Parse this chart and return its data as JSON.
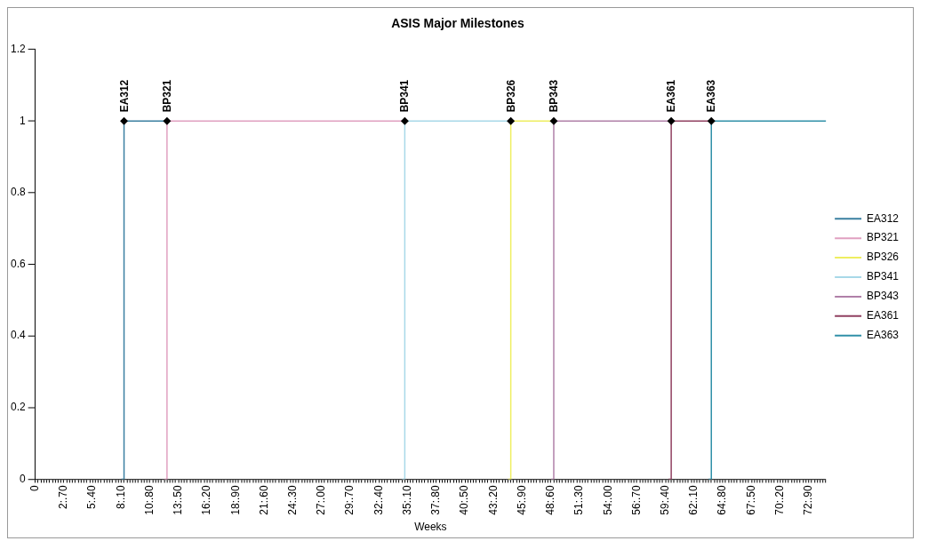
{
  "chart_data": {
    "type": "step",
    "title": "ASIS Major Milestones",
    "xlabel": "Weeks",
    "categories": [
      "0",
      null,
      null,
      null,
      null,
      null,
      null,
      null,
      null,
      null,
      "2:.70",
      null,
      null,
      null,
      null,
      null,
      null,
      null,
      null,
      null,
      "5:.40",
      null,
      null,
      null,
      null,
      null,
      null,
      null,
      null,
      null,
      "8:.10",
      null,
      null,
      null,
      null,
      null,
      null,
      null,
      null,
      null,
      "10:.80",
      null,
      null,
      null,
      null,
      null,
      null,
      null,
      null,
      null,
      "13:.50",
      null,
      null,
      null,
      null,
      null,
      null,
      null,
      null,
      null,
      "16:.20",
      null,
      null,
      null,
      null,
      null,
      null,
      null,
      null,
      null,
      "18:.90",
      null,
      null,
      null,
      null,
      null,
      null,
      null,
      null,
      null,
      "21:.60",
      null,
      null,
      null,
      null,
      null,
      null,
      null,
      null,
      null,
      "24:.30",
      null,
      null,
      null,
      null,
      null,
      null,
      null,
      null,
      null,
      "27:.00",
      null,
      null,
      null,
      null,
      null,
      null,
      null,
      null,
      null,
      "29:.70",
      null,
      null,
      null,
      null,
      null,
      null,
      null,
      null,
      null,
      "32:.40",
      null,
      null,
      null,
      null,
      null,
      null,
      null,
      null,
      null,
      "35:.10",
      null,
      null,
      null,
      null,
      null,
      null,
      null,
      null,
      null,
      "37:.80",
      null,
      null,
      null,
      null,
      null,
      null,
      null,
      null,
      null,
      "40:.50",
      null,
      null,
      null,
      null,
      null,
      null,
      null,
      null,
      null,
      "43:.20",
      null,
      null,
      null,
      null,
      null,
      null,
      null,
      null,
      null,
      "45:.90",
      null,
      null,
      null,
      null,
      null,
      null,
      null,
      null,
      null,
      "48:.60",
      null,
      null,
      null,
      null,
      null,
      null,
      null,
      null,
      null,
      "51:.30",
      null,
      null,
      null,
      null,
      null,
      null,
      null,
      null,
      null,
      "54:.00",
      null,
      null,
      null,
      null,
      null,
      null,
      null,
      null,
      null,
      "56:.70",
      null,
      null,
      null,
      null,
      null,
      null,
      null,
      null,
      null,
      "59:.40",
      null,
      null,
      null,
      null,
      null,
      null,
      null,
      null,
      null,
      "62:.10",
      null,
      null,
      null,
      null,
      null,
      null,
      null,
      null,
      null,
      "64:.80",
      null,
      null,
      null,
      null,
      null,
      null,
      null,
      null,
      null,
      "67:.50",
      null,
      null,
      null,
      null,
      null,
      null,
      null,
      null,
      null,
      "70:.20",
      null,
      null,
      null,
      null,
      null,
      null,
      null,
      null,
      null,
      "72:.90",
      null,
      null,
      null,
      null,
      null,
      null
    ],
    "ylim": [
      0,
      1.2
    ],
    "yticks": [
      0,
      0.2,
      0.4,
      0.6,
      0.8,
      1,
      1.2
    ],
    "grid": false,
    "legend": "right",
    "line_style": "solid",
    "series": [
      {
        "name": "EA312",
        "color": "#3a7fa0",
        "values": [
          null,
          null,
          null,
          null,
          null,
          null,
          null,
          null,
          null,
          null,
          null,
          null,
          null,
          null,
          null,
          null,
          null,
          null,
          null,
          null,
          null,
          null,
          null,
          null,
          null,
          null,
          null,
          null,
          null,
          null,
          0,
          1,
          1,
          1,
          1,
          1,
          1,
          1,
          1,
          1,
          1,
          1,
          1,
          1,
          1,
          1,
          1,
          null,
          null,
          null,
          null,
          null,
          null,
          null,
          null,
          null,
          null,
          null,
          null,
          null,
          null,
          null,
          null,
          null,
          null,
          null,
          null,
          null,
          null,
          null,
          null,
          null,
          null,
          null,
          null,
          null,
          null,
          null,
          null,
          null,
          null,
          null,
          null,
          null,
          null,
          null,
          null,
          null,
          null,
          null,
          null,
          null,
          null,
          null,
          null,
          null,
          null,
          null,
          null,
          null,
          null,
          null,
          null,
          null,
          null,
          null,
          null,
          null,
          null,
          null,
          null,
          null,
          null,
          null,
          null,
          null,
          null,
          null,
          null,
          null,
          null,
          null,
          null,
          null,
          null,
          null,
          null,
          null,
          null,
          null,
          null,
          null,
          null,
          null,
          null,
          null,
          null,
          null,
          null,
          null,
          null,
          null,
          null,
          null,
          null,
          null,
          null,
          null,
          null,
          null,
          null,
          null,
          null,
          null,
          null,
          null,
          null,
          null,
          null,
          null,
          null,
          null,
          null,
          null,
          null,
          null,
          null,
          null,
          null,
          null,
          null,
          null,
          null,
          null,
          null,
          null,
          null,
          null,
          null,
          null,
          null,
          null,
          null,
          null,
          null,
          null,
          null,
          null,
          null,
          null,
          null,
          null,
          null,
          null,
          null,
          null,
          null,
          null,
          null,
          null,
          null,
          null,
          null,
          null,
          null,
          null,
          null,
          null,
          null,
          null,
          null,
          null,
          null,
          null,
          null,
          null,
          null,
          null,
          null,
          null,
          null,
          null,
          null,
          null,
          null,
          null,
          null,
          null,
          null,
          null,
          null,
          null,
          null,
          null,
          null,
          null,
          null,
          null,
          null,
          null,
          null,
          null,
          null,
          null,
          null,
          null,
          null,
          null,
          null,
          null,
          null,
          null,
          null,
          null,
          null,
          null,
          null,
          null,
          null,
          null,
          null,
          null,
          null,
          null,
          null,
          null,
          null,
          null,
          null,
          null,
          null,
          null,
          null,
          null,
          null,
          null,
          null
        ]
      },
      {
        "name": "BP321",
        "color": "#e0a0c0",
        "values": [
          null,
          null,
          null,
          null,
          null,
          null,
          null,
          null,
          null,
          null,
          null,
          null,
          null,
          null,
          null,
          null,
          null,
          null,
          null,
          null,
          null,
          null,
          null,
          null,
          null,
          null,
          null,
          null,
          null,
          null,
          null,
          null,
          null,
          null,
          null,
          null,
          null,
          null,
          null,
          null,
          null,
          null,
          null,
          null,
          null,
          0,
          1,
          1,
          1,
          1,
          1,
          1,
          1,
          1,
          1,
          1,
          1,
          1,
          1,
          1,
          1,
          1,
          1,
          1,
          1,
          1,
          1,
          1,
          1,
          1,
          1,
          1,
          1,
          1,
          1,
          1,
          1,
          1,
          1,
          1,
          1,
          1,
          1,
          1,
          1,
          1,
          1,
          1,
          1,
          1,
          1,
          1,
          1,
          1,
          1,
          1,
          1,
          1,
          1,
          1,
          1,
          1,
          1,
          1,
          1,
          1,
          1,
          1,
          1,
          1,
          1,
          1,
          1,
          1,
          1,
          1,
          1,
          1,
          1,
          1,
          1,
          1,
          1,
          1,
          1,
          1,
          1,
          1,
          1,
          1,
          null,
          null,
          null,
          null,
          null,
          null,
          null,
          null,
          null,
          null,
          null,
          null,
          null,
          null,
          null,
          null,
          null,
          null,
          null,
          null,
          null,
          null,
          null,
          null,
          null,
          null,
          null,
          null,
          null,
          null,
          null,
          null,
          null,
          null,
          null,
          null,
          null,
          null,
          null,
          null,
          null,
          null,
          null,
          null,
          null,
          null,
          null,
          null,
          null,
          null,
          null,
          null,
          null,
          null,
          null,
          null,
          null,
          null,
          null,
          null,
          null,
          null,
          null,
          null,
          null,
          null,
          null,
          null,
          null,
          null,
          null,
          null,
          null,
          null,
          null,
          null,
          null,
          null,
          null,
          null,
          null,
          null,
          null,
          null,
          null,
          null,
          null,
          null,
          null,
          null,
          null,
          null,
          null,
          null,
          null,
          null,
          null,
          null,
          null,
          null,
          null,
          null,
          null,
          null,
          null,
          null,
          null,
          null,
          null,
          null,
          null,
          null,
          null,
          null,
          null,
          null,
          null,
          null,
          null,
          null,
          null,
          null,
          null,
          null,
          null,
          null,
          null,
          null,
          null,
          null,
          null,
          null,
          null,
          null,
          null,
          null,
          null,
          null,
          null,
          null,
          null,
          null,
          null,
          null,
          null,
          null,
          null
        ]
      },
      {
        "name": "BP326",
        "color": "#eeee60",
        "values": [
          null,
          null,
          null,
          null,
          null,
          null,
          null,
          null,
          null,
          null,
          null,
          null,
          null,
          null,
          null,
          null,
          null,
          null,
          null,
          null,
          null,
          null,
          null,
          null,
          null,
          null,
          null,
          null,
          null,
          null,
          null,
          null,
          null,
          null,
          null,
          null,
          null,
          null,
          null,
          null,
          null,
          null,
          null,
          null,
          null,
          null,
          null,
          null,
          null,
          null,
          null,
          null,
          null,
          null,
          null,
          null,
          null,
          null,
          null,
          null,
          null,
          null,
          null,
          null,
          null,
          null,
          null,
          null,
          null,
          null,
          null,
          null,
          null,
          null,
          null,
          null,
          null,
          null,
          null,
          null,
          null,
          null,
          null,
          null,
          null,
          null,
          null,
          null,
          null,
          null,
          null,
          null,
          null,
          null,
          null,
          null,
          null,
          null,
          null,
          null,
          null,
          null,
          null,
          null,
          null,
          null,
          null,
          null,
          null,
          null,
          null,
          null,
          null,
          null,
          null,
          null,
          null,
          null,
          null,
          null,
          null,
          null,
          null,
          null,
          null,
          null,
          null,
          null,
          null,
          null,
          null,
          null,
          null,
          null,
          null,
          null,
          null,
          null,
          null,
          null,
          null,
          null,
          null,
          null,
          null,
          null,
          null,
          null,
          null,
          null,
          null,
          null,
          null,
          null,
          null,
          null,
          null,
          null,
          null,
          null,
          null,
          null,
          null,
          null,
          null,
          0,
          1,
          1,
          1,
          1,
          1,
          1,
          1,
          1,
          1,
          1,
          1,
          1,
          1,
          1,
          1,
          1,
          null,
          null,
          null,
          null,
          null,
          null,
          null,
          null,
          null,
          null,
          null,
          null,
          null,
          null,
          null,
          null,
          null,
          null,
          null,
          null,
          null,
          null,
          null,
          null,
          null,
          null,
          null,
          null,
          null,
          null,
          null,
          null,
          null,
          null,
          null,
          null,
          null,
          null,
          null,
          null,
          null,
          null,
          null,
          null,
          null,
          null,
          null,
          null,
          null,
          null,
          null,
          null,
          null,
          null,
          null,
          null,
          null,
          null,
          null,
          null,
          null,
          null,
          null,
          null,
          null,
          null,
          null,
          null,
          null,
          null,
          null,
          null,
          null,
          null,
          null,
          null,
          null,
          null,
          null,
          null,
          null,
          null,
          null,
          null,
          null,
          null,
          null,
          null,
          null,
          null,
          null,
          null,
          null,
          null,
          null
        ]
      },
      {
        "name": "BP341",
        "color": "#a8d8e8",
        "values": [
          null,
          null,
          null,
          null,
          null,
          null,
          null,
          null,
          null,
          null,
          null,
          null,
          null,
          null,
          null,
          null,
          null,
          null,
          null,
          null,
          null,
          null,
          null,
          null,
          null,
          null,
          null,
          null,
          null,
          null,
          null,
          null,
          null,
          null,
          null,
          null,
          null,
          null,
          null,
          null,
          null,
          null,
          null,
          null,
          null,
          null,
          null,
          null,
          null,
          null,
          null,
          null,
          null,
          null,
          null,
          null,
          null,
          null,
          null,
          null,
          null,
          null,
          null,
          null,
          null,
          null,
          null,
          null,
          null,
          null,
          null,
          null,
          null,
          null,
          null,
          null,
          null,
          null,
          null,
          null,
          null,
          null,
          null,
          null,
          null,
          null,
          null,
          null,
          null,
          null,
          null,
          null,
          null,
          null,
          null,
          null,
          null,
          null,
          null,
          null,
          null,
          null,
          null,
          null,
          null,
          null,
          null,
          null,
          null,
          null,
          null,
          null,
          null,
          null,
          null,
          null,
          null,
          null,
          null,
          null,
          null,
          null,
          null,
          null,
          null,
          null,
          null,
          null,
          0,
          1,
          1,
          1,
          1,
          1,
          1,
          1,
          1,
          1,
          1,
          1,
          1,
          1,
          1,
          1,
          1,
          1,
          1,
          1,
          1,
          1,
          1,
          1,
          1,
          1,
          1,
          1,
          1,
          1,
          1,
          1,
          1,
          1,
          1,
          1,
          1,
          1,
          1,
          null,
          null,
          null,
          null,
          null,
          null,
          null,
          null,
          null,
          null,
          null,
          null,
          null,
          null,
          null,
          null,
          null,
          null,
          null,
          null,
          null,
          null,
          null,
          null,
          null,
          null,
          null,
          null,
          null,
          null,
          null,
          null,
          null,
          null,
          null,
          null,
          null,
          null,
          null,
          null,
          null,
          null,
          null,
          null,
          null,
          null,
          null,
          null,
          null,
          null,
          null,
          null,
          null,
          null,
          null,
          null,
          null,
          null,
          null,
          null,
          null,
          null,
          null,
          null,
          null,
          null,
          null,
          null,
          null,
          null,
          null,
          null,
          null,
          null,
          null,
          null,
          null,
          null,
          null,
          null,
          null,
          null,
          null,
          null,
          null,
          null,
          null,
          null,
          null,
          null,
          null,
          null,
          null,
          null,
          null,
          null,
          null,
          null,
          null,
          null,
          null,
          null,
          null,
          null,
          null,
          null,
          null,
          null,
          null,
          null
        ]
      },
      {
        "name": "BP343",
        "color": "#b080a8",
        "values": [
          null,
          null,
          null,
          null,
          null,
          null,
          null,
          null,
          null,
          null,
          null,
          null,
          null,
          null,
          null,
          null,
          null,
          null,
          null,
          null,
          null,
          null,
          null,
          null,
          null,
          null,
          null,
          null,
          null,
          null,
          null,
          null,
          null,
          null,
          null,
          null,
          null,
          null,
          null,
          null,
          null,
          null,
          null,
          null,
          null,
          null,
          null,
          null,
          null,
          null,
          null,
          null,
          null,
          null,
          null,
          null,
          null,
          null,
          null,
          null,
          null,
          null,
          null,
          null,
          null,
          null,
          null,
          null,
          null,
          null,
          null,
          null,
          null,
          null,
          null,
          null,
          null,
          null,
          null,
          null,
          null,
          null,
          null,
          null,
          null,
          null,
          null,
          null,
          null,
          null,
          null,
          null,
          null,
          null,
          null,
          null,
          null,
          null,
          null,
          null,
          null,
          null,
          null,
          null,
          null,
          null,
          null,
          null,
          null,
          null,
          null,
          null,
          null,
          null,
          null,
          null,
          null,
          null,
          null,
          null,
          null,
          null,
          null,
          null,
          null,
          null,
          null,
          null,
          null,
          null,
          null,
          null,
          null,
          null,
          null,
          null,
          null,
          null,
          null,
          null,
          null,
          null,
          null,
          null,
          null,
          null,
          null,
          null,
          null,
          null,
          null,
          null,
          null,
          null,
          null,
          null,
          null,
          null,
          null,
          null,
          null,
          null,
          null,
          null,
          null,
          null,
          null,
          null,
          null,
          null,
          null,
          null,
          null,
          null,
          null,
          null,
          null,
          null,
          null,
          null,
          0,
          1,
          1,
          1,
          1,
          1,
          1,
          1,
          1,
          1,
          1,
          1,
          1,
          1,
          1,
          1,
          1,
          1,
          1,
          1,
          1,
          1,
          1,
          1,
          1,
          1,
          1,
          1,
          1,
          1,
          1,
          1,
          1,
          1,
          1,
          1,
          1,
          1,
          1,
          1,
          1,
          1,
          1,
          null,
          null,
          null,
          null,
          null,
          null,
          null,
          null,
          null,
          null,
          null,
          null,
          null,
          null,
          null,
          null,
          null,
          null,
          null,
          null,
          null,
          null,
          null,
          null,
          null,
          null,
          null,
          null,
          null,
          null,
          null,
          null,
          null,
          null,
          null,
          null,
          null,
          null,
          null,
          null,
          null,
          null,
          null,
          null,
          null,
          null,
          null,
          null,
          null,
          null,
          null,
          null,
          null,
          null
        ]
      },
      {
        "name": "EA361",
        "color": "#904060",
        "values": [
          null,
          null,
          null,
          null,
          null,
          null,
          null,
          null,
          null,
          null,
          null,
          null,
          null,
          null,
          null,
          null,
          null,
          null,
          null,
          null,
          null,
          null,
          null,
          null,
          null,
          null,
          null,
          null,
          null,
          null,
          null,
          null,
          null,
          null,
          null,
          null,
          null,
          null,
          null,
          null,
          null,
          null,
          null,
          null,
          null,
          null,
          null,
          null,
          null,
          null,
          null,
          null,
          null,
          null,
          null,
          null,
          null,
          null,
          null,
          null,
          null,
          null,
          null,
          null,
          null,
          null,
          null,
          null,
          null,
          null,
          null,
          null,
          null,
          null,
          null,
          null,
          null,
          null,
          null,
          null,
          null,
          null,
          null,
          null,
          null,
          null,
          null,
          null,
          null,
          null,
          null,
          null,
          null,
          null,
          null,
          null,
          null,
          null,
          null,
          null,
          null,
          null,
          null,
          null,
          null,
          null,
          null,
          null,
          null,
          null,
          null,
          null,
          null,
          null,
          null,
          null,
          null,
          null,
          null,
          null,
          null,
          null,
          null,
          null,
          null,
          null,
          null,
          null,
          null,
          null,
          null,
          null,
          null,
          null,
          null,
          null,
          null,
          null,
          null,
          null,
          null,
          null,
          null,
          null,
          null,
          null,
          null,
          null,
          null,
          null,
          null,
          null,
          null,
          null,
          null,
          null,
          null,
          null,
          null,
          null,
          null,
          null,
          null,
          null,
          null,
          null,
          null,
          null,
          null,
          null,
          null,
          null,
          null,
          null,
          null,
          null,
          null,
          null,
          null,
          null,
          null,
          null,
          null,
          null,
          null,
          null,
          null,
          null,
          null,
          null,
          null,
          null,
          null,
          null,
          null,
          null,
          null,
          null,
          null,
          null,
          null,
          null,
          null,
          null,
          null,
          null,
          null,
          null,
          null,
          null,
          null,
          null,
          null,
          null,
          null,
          null,
          null,
          null,
          null,
          null,
          null,
          0,
          1,
          1,
          1,
          1,
          1,
          1,
          1,
          1,
          1,
          1,
          1,
          1,
          1,
          1,
          1,
          null,
          null,
          null,
          null,
          null,
          null,
          null,
          null,
          null,
          null,
          null,
          null,
          null,
          null,
          null,
          null,
          null,
          null,
          null,
          null,
          null,
          null,
          null,
          null,
          null,
          null,
          null,
          null,
          null,
          null,
          null,
          null,
          null,
          null,
          null,
          null,
          null,
          null,
          null,
          null
        ]
      },
      {
        "name": "EA363",
        "color": "#3090a8",
        "values": [
          null,
          null,
          null,
          null,
          null,
          null,
          null,
          null,
          null,
          null,
          null,
          null,
          null,
          null,
          null,
          null,
          null,
          null,
          null,
          null,
          null,
          null,
          null,
          null,
          null,
          null,
          null,
          null,
          null,
          null,
          null,
          null,
          null,
          null,
          null,
          null,
          null,
          null,
          null,
          null,
          null,
          null,
          null,
          null,
          null,
          null,
          null,
          null,
          null,
          null,
          null,
          null,
          null,
          null,
          null,
          null,
          null,
          null,
          null,
          null,
          null,
          null,
          null,
          null,
          null,
          null,
          null,
          null,
          null,
          null,
          null,
          null,
          null,
          null,
          null,
          null,
          null,
          null,
          null,
          null,
          null,
          null,
          null,
          null,
          null,
          null,
          null,
          null,
          null,
          null,
          null,
          null,
          null,
          null,
          null,
          null,
          null,
          null,
          null,
          null,
          null,
          null,
          null,
          null,
          null,
          null,
          null,
          null,
          null,
          null,
          null,
          null,
          null,
          null,
          null,
          null,
          null,
          null,
          null,
          null,
          null,
          null,
          null,
          null,
          null,
          null,
          null,
          null,
          null,
          null,
          null,
          null,
          null,
          null,
          null,
          null,
          null,
          null,
          null,
          null,
          null,
          null,
          null,
          null,
          null,
          null,
          null,
          null,
          null,
          null,
          null,
          null,
          null,
          null,
          null,
          null,
          null,
          null,
          null,
          null,
          null,
          null,
          null,
          null,
          null,
          null,
          null,
          null,
          null,
          null,
          null,
          null,
          null,
          null,
          null,
          null,
          null,
          null,
          null,
          null,
          null,
          null,
          null,
          null,
          null,
          null,
          null,
          null,
          null,
          null,
          null,
          null,
          null,
          null,
          null,
          null,
          null,
          null,
          null,
          null,
          null,
          null,
          null,
          null,
          null,
          null,
          null,
          null,
          null,
          null,
          null,
          null,
          null,
          null,
          null,
          null,
          null,
          null,
          null,
          null,
          null,
          null,
          null,
          null,
          null,
          null,
          null,
          null,
          null,
          null,
          null,
          null,
          null,
          null,
          null,
          0,
          1,
          1,
          1,
          1,
          1,
          1,
          1,
          1,
          1,
          1,
          1,
          1,
          1,
          1,
          1,
          1,
          1,
          1,
          1,
          1,
          1,
          1,
          1,
          1,
          1,
          1,
          1,
          1,
          1,
          1,
          1,
          1,
          1,
          1,
          1,
          1,
          1,
          1,
          1,
          1,
          1
        ]
      }
    ],
    "annotations": [
      {
        "text": "EA312",
        "y": 1
      },
      {
        "text": "BP321",
        "y": 1
      },
      {
        "text": "BP326",
        "y": 1
      },
      {
        "text": "BP341",
        "y": 1
      },
      {
        "text": "BP343",
        "y": 1
      },
      {
        "text": "EA361",
        "y": 1
      },
      {
        "text": "EA363",
        "y": 1
      }
    ]
  }
}
